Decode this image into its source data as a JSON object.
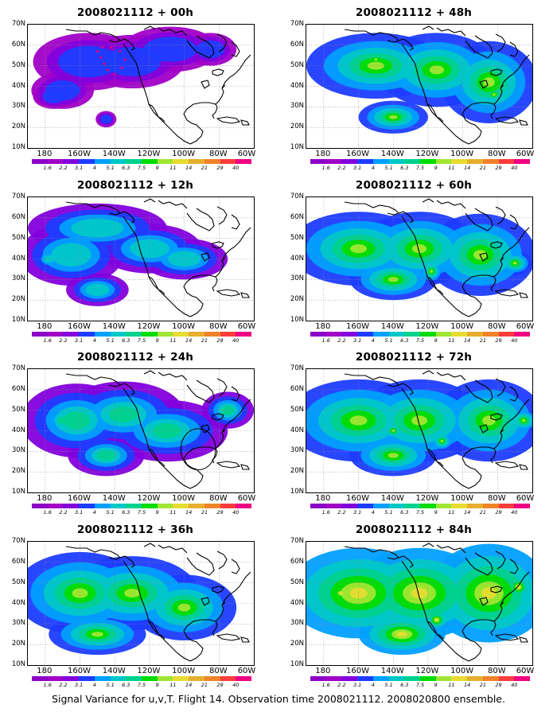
{
  "caption": "Signal Variance for u,v,T. Flight 14. Observation time 2008021112. 2008020800 ensemble.",
  "axes": {
    "y_labels": [
      "70N",
      "60N",
      "50N",
      "40N",
      "30N",
      "20N",
      "10N"
    ],
    "x_labels": [
      "180",
      "160W",
      "140W",
      "120W",
      "100W",
      "80W",
      "60W"
    ]
  },
  "colorbar": {
    "levels": [
      "1.6",
      "2.2",
      "3.1",
      "4",
      "5.1",
      "6.3",
      "7.5",
      "9",
      "11",
      "14",
      "21",
      "29",
      "40"
    ],
    "colors": [
      "#a000c8",
      "#8200dc",
      "#1e3cff",
      "#00a0ff",
      "#00c8c8",
      "#00d28c",
      "#00dc00",
      "#a0e632",
      "#e6dc32",
      "#e6af2d",
      "#f08228",
      "#fa3c3c",
      "#f00082"
    ]
  },
  "colors": {
    "coastline": "#000000",
    "grid": "#8a8a8a",
    "outline_marks": "#e0007a"
  },
  "panels": [
    {
      "id": "p00",
      "title": "2008021112 + 00h",
      "level": 1,
      "col": 0,
      "row": 0,
      "blobs": [
        {
          "lon": -155,
          "lat": 52,
          "rx": 32,
          "ry": 14
        },
        {
          "lon": -130,
          "lat": 52,
          "rx": 30,
          "ry": 13
        },
        {
          "lon": -108,
          "lat": 58,
          "rx": 28,
          "ry": 11
        },
        {
          "lon": -170,
          "lat": 38,
          "rx": 18,
          "ry": 9
        },
        {
          "lon": -175,
          "lat": 35,
          "rx": 12,
          "ry": 6
        },
        {
          "lon": -145,
          "lat": 24,
          "rx": 6,
          "ry": 4
        },
        {
          "lon": -85,
          "lat": 58,
          "rx": 15,
          "ry": 8
        }
      ]
    },
    {
      "id": "p12",
      "title": "2008021112 + 12h",
      "level": 2,
      "col": 0,
      "row": 1,
      "blobs": [
        {
          "lon": -165,
          "lat": 42,
          "rx": 30,
          "ry": 15
        },
        {
          "lon": -150,
          "lat": 55,
          "rx": 40,
          "ry": 12
        },
        {
          "lon": -120,
          "lat": 45,
          "rx": 30,
          "ry": 12
        },
        {
          "lon": -100,
          "lat": 40,
          "rx": 25,
          "ry": 10
        },
        {
          "lon": -150,
          "lat": 25,
          "rx": 18,
          "ry": 8
        },
        {
          "lon": -178,
          "lat": 40,
          "rx": 8,
          "ry": 5
        }
      ]
    },
    {
      "id": "p24",
      "title": "2008021112 + 24h",
      "level": 3,
      "col": 0,
      "row": 2,
      "blobs": [
        {
          "lon": -162,
          "lat": 45,
          "rx": 32,
          "ry": 18
        },
        {
          "lon": -135,
          "lat": 48,
          "rx": 35,
          "ry": 16
        },
        {
          "lon": -110,
          "lat": 40,
          "rx": 35,
          "ry": 15
        },
        {
          "lon": -145,
          "lat": 28,
          "rx": 22,
          "ry": 10
        },
        {
          "lon": -170,
          "lat": 45,
          "rx": 12,
          "ry": 7
        },
        {
          "lon": -75,
          "lat": 50,
          "rx": 15,
          "ry": 9
        }
      ]
    },
    {
      "id": "p36",
      "title": "2008021112 + 36h",
      "level": 4,
      "col": 0,
      "row": 3,
      "blobs": [
        {
          "lon": -160,
          "lat": 45,
          "rx": 38,
          "ry": 20
        },
        {
          "lon": -130,
          "lat": 45,
          "rx": 38,
          "ry": 18
        },
        {
          "lon": -100,
          "lat": 38,
          "rx": 30,
          "ry": 16
        },
        {
          "lon": -150,
          "lat": 25,
          "rx": 28,
          "ry": 10
        },
        {
          "lon": -162,
          "lat": 45,
          "rx": 14,
          "ry": 7
        },
        {
          "lon": -100,
          "lat": 38,
          "rx": 10,
          "ry": 6
        }
      ]
    },
    {
      "id": "p48",
      "title": "2008021112 + 48h",
      "level": 4,
      "col": 1,
      "row": 0,
      "blobs": [
        {
          "lon": -150,
          "lat": 50,
          "rx": 40,
          "ry": 16
        },
        {
          "lon": -115,
          "lat": 48,
          "rx": 35,
          "ry": 18
        },
        {
          "lon": -85,
          "lat": 42,
          "rx": 28,
          "ry": 20
        },
        {
          "lon": -140,
          "lat": 25,
          "rx": 20,
          "ry": 8
        },
        {
          "lon": -150,
          "lat": 53,
          "rx": 8,
          "ry": 5
        },
        {
          "lon": -82,
          "lat": 36,
          "rx": 8,
          "ry": 5
        }
      ]
    },
    {
      "id": "p60",
      "title": "2008021112 + 60h",
      "level": 5,
      "col": 1,
      "row": 1,
      "blobs": [
        {
          "lon": -160,
          "lat": 45,
          "rx": 40,
          "ry": 18
        },
        {
          "lon": -125,
          "lat": 45,
          "rx": 35,
          "ry": 18
        },
        {
          "lon": -90,
          "lat": 42,
          "rx": 32,
          "ry": 20
        },
        {
          "lon": -140,
          "lat": 30,
          "rx": 25,
          "ry": 10
        },
        {
          "lon": -118,
          "lat": 34,
          "rx": 7,
          "ry": 6
        },
        {
          "lon": -70,
          "lat": 38,
          "rx": 10,
          "ry": 6
        }
      ]
    },
    {
      "id": "p72",
      "title": "2008021112 + 72h",
      "level": 5,
      "col": 1,
      "row": 2,
      "blobs": [
        {
          "lon": -160,
          "lat": 45,
          "rx": 42,
          "ry": 20
        },
        {
          "lon": -125,
          "lat": 45,
          "rx": 38,
          "ry": 20
        },
        {
          "lon": -85,
          "lat": 45,
          "rx": 32,
          "ry": 20
        },
        {
          "lon": -140,
          "lat": 28,
          "rx": 25,
          "ry": 10
        },
        {
          "lon": -140,
          "lat": 40,
          "rx": 7,
          "ry": 5
        },
        {
          "lon": -112,
          "lat": 35,
          "rx": 7,
          "ry": 5
        },
        {
          "lon": -65,
          "lat": 45,
          "rx": 9,
          "ry": 6
        }
      ]
    },
    {
      "id": "p84",
      "title": "2008021112 + 84h",
      "level": 6,
      "col": 1,
      "row": 3,
      "blobs": [
        {
          "lon": -160,
          "lat": 45,
          "rx": 42,
          "ry": 22
        },
        {
          "lon": -125,
          "lat": 45,
          "rx": 40,
          "ry": 22
        },
        {
          "lon": -85,
          "lat": 45,
          "rx": 35,
          "ry": 24
        },
        {
          "lon": -135,
          "lat": 25,
          "rx": 25,
          "ry": 10
        },
        {
          "lon": -170,
          "lat": 45,
          "rx": 8,
          "ry": 5
        },
        {
          "lon": -115,
          "lat": 32,
          "rx": 7,
          "ry": 5
        },
        {
          "lon": -68,
          "lat": 48,
          "rx": 8,
          "ry": 6
        }
      ]
    }
  ]
}
